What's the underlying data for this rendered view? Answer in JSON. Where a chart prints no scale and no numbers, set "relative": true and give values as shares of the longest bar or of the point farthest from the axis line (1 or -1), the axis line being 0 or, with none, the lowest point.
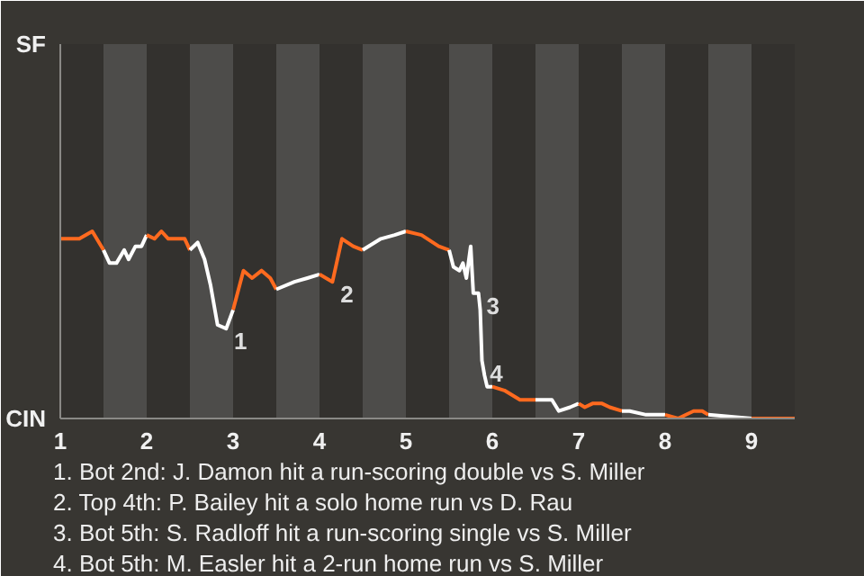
{
  "chart_data": {
    "type": "line",
    "relative": true,
    "series": [
      {
        "color": "#ff6a1f",
        "x": [
          1.01,
          1.22,
          1.37,
          1.5
        ],
        "values": [
          0.96,
          0.96,
          1.0,
          0.9
        ]
      },
      {
        "color": "#ffffff",
        "x": [
          1.5,
          1.57,
          1.65,
          1.74,
          1.79,
          1.87,
          1.94,
          2.0
        ],
        "values": [
          0.9,
          0.83,
          0.83,
          0.9,
          0.85,
          0.92,
          0.92,
          0.98
        ]
      },
      {
        "color": "#ff6a1f",
        "x": [
          2.0,
          2.09,
          2.17,
          2.25,
          2.44,
          2.5
        ],
        "values": [
          0.98,
          0.96,
          1.0,
          0.96,
          0.96,
          0.9
        ]
      },
      {
        "color": "#ffffff",
        "x": [
          2.5,
          2.59,
          2.67,
          2.74,
          2.82,
          2.92,
          3.0
        ],
        "values": [
          0.9,
          0.94,
          0.85,
          0.71,
          0.5,
          0.48,
          0.58
        ]
      },
      {
        "color": "#ff6a1f",
        "x": [
          3.0,
          3.12,
          3.22,
          3.33,
          3.43,
          3.5
        ],
        "values": [
          0.58,
          0.79,
          0.75,
          0.79,
          0.75,
          0.69
        ]
      },
      {
        "color": "#ffffff",
        "x": [
          3.5,
          3.71,
          3.86,
          4.0
        ],
        "values": [
          0.69,
          0.73,
          0.75,
          0.77
        ]
      },
      {
        "color": "#ff6a1f",
        "x": [
          4.0,
          4.15,
          4.26,
          4.39,
          4.5
        ],
        "values": [
          0.77,
          0.73,
          0.96,
          0.92,
          0.9
        ]
      },
      {
        "color": "#ffffff",
        "x": [
          4.5,
          4.71,
          4.87,
          5.0
        ],
        "values": [
          0.9,
          0.96,
          0.98,
          1.0
        ]
      },
      {
        "color": "#ff6a1f",
        "x": [
          5.0,
          5.18,
          5.38,
          5.5
        ],
        "values": [
          1.0,
          0.98,
          0.92,
          0.9
        ]
      },
      {
        "color": "#ffffff",
        "x": [
          5.5,
          5.55,
          5.62,
          5.66,
          5.7,
          5.75,
          5.78,
          5.84,
          5.86,
          5.88,
          5.91,
          5.94,
          6.0
        ],
        "values": [
          0.9,
          0.81,
          0.79,
          0.83,
          0.75,
          0.92,
          0.67,
          0.67,
          0.58,
          0.31,
          0.23,
          0.17,
          0.17
        ]
      },
      {
        "color": "#ff6a1f",
        "x": [
          6.0,
          6.14,
          6.32,
          6.5
        ],
        "values": [
          0.17,
          0.15,
          0.1,
          0.1
        ]
      },
      {
        "color": "#ffffff",
        "x": [
          6.5,
          6.69,
          6.77,
          6.9,
          7.0
        ],
        "values": [
          0.1,
          0.1,
          0.04,
          0.06,
          0.08
        ]
      },
      {
        "color": "#ff6a1f",
        "x": [
          7.0,
          7.07,
          7.16,
          7.27,
          7.36,
          7.5
        ],
        "values": [
          0.08,
          0.06,
          0.08,
          0.08,
          0.06,
          0.04
        ]
      },
      {
        "color": "#ffffff",
        "x": [
          7.5,
          7.59,
          7.78,
          8.0
        ],
        "values": [
          0.04,
          0.04,
          0.02,
          0.02
        ]
      },
      {
        "color": "#ff6a1f",
        "x": [
          8.0,
          8.15,
          8.33,
          8.43,
          8.5
        ],
        "values": [
          0.02,
          0.0,
          0.04,
          0.04,
          0.02
        ]
      },
      {
        "color": "#ffffff",
        "x": [
          8.5,
          9.0
        ],
        "values": [
          0.02,
          0.0
        ]
      },
      {
        "color": "#ff6a1f",
        "x": [
          9.0,
          9.5
        ],
        "values": [
          0.0,
          0.0
        ]
      }
    ],
    "xlim": [
      1,
      9.5
    ],
    "xticks": [
      1,
      2,
      3,
      4,
      5,
      6,
      7,
      8,
      9
    ],
    "bands": [
      {
        "axis": "x",
        "from": 1.5,
        "to": 2,
        "color": "#4d4c4a"
      },
      {
        "axis": "x",
        "from": 2.5,
        "to": 3,
        "color": "#4d4c4a"
      },
      {
        "axis": "x",
        "from": 3.5,
        "to": 4,
        "color": "#4d4c4a"
      },
      {
        "axis": "x",
        "from": 4.5,
        "to": 5,
        "color": "#4d4c4a"
      },
      {
        "axis": "x",
        "from": 5.5,
        "to": 6,
        "color": "#4d4c4a"
      },
      {
        "axis": "x",
        "from": 6.5,
        "to": 7,
        "color": "#4d4c4a"
      },
      {
        "axis": "x",
        "from": 7.5,
        "to": 8,
        "color": "#4d4c4a"
      },
      {
        "axis": "x",
        "from": 8.5,
        "to": 9,
        "color": "#4d4c4a"
      }
    ],
    "annotations": [
      "SF",
      "CIN",
      {
        "text": "1",
        "x": 2.92,
        "y": 0.48
      },
      {
        "text": "2",
        "x": 4.15,
        "y": 0.73
      },
      {
        "text": "3",
        "x": 5.84,
        "y": 0.67
      },
      {
        "text": "4",
        "x": 5.88,
        "y": 0.31
      },
      "1. Bot 2nd: J. Damon hit a run-scoring double vs S. Miller",
      "2. Top 4th: P. Bailey hit a solo home run vs D. Rau",
      "3. Bot 5th: S. Radloff hit a run-scoring single vs S. Miller",
      "4. Bot 5th: M. Easler hit a 2-run home run vs S. Miller"
    ]
  }
}
